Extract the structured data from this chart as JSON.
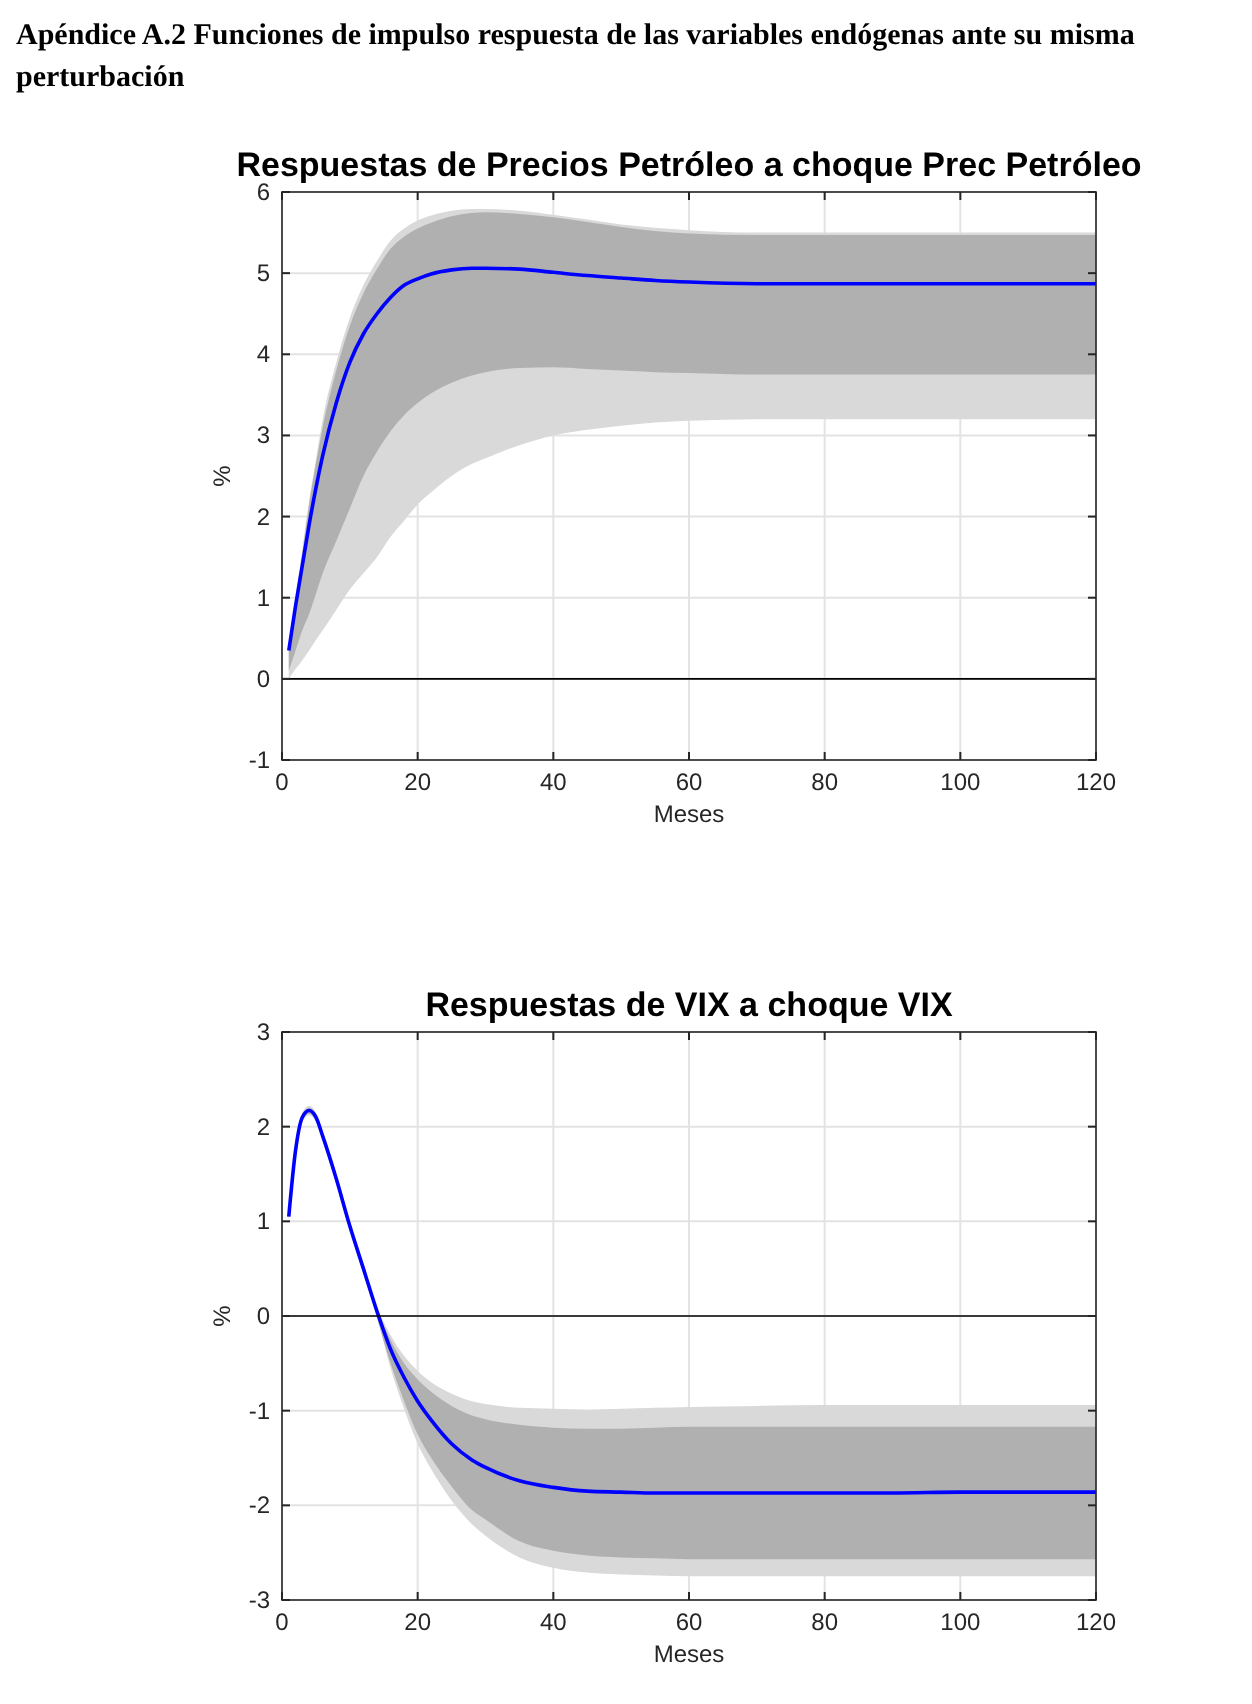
{
  "chart_data": [
    {
      "type": "line",
      "title": "Respuestas de Precios Petróleo a choque Prec Petróleo",
      "xlabel": "Meses",
      "ylabel": "%",
      "annotations": [
        "Apéndice A.2 Funciones de impulso respuesta de las variables endógenas ante su misma perturbación"
      ],
      "x": [
        1,
        2,
        3,
        4,
        5,
        6,
        8,
        10,
        12,
        14,
        16,
        18,
        20,
        22,
        25,
        28,
        30,
        35,
        40,
        45,
        50,
        55,
        60,
        70,
        80,
        90,
        100,
        110,
        120
      ],
      "series": [
        {
          "color": "#d9d9d9",
          "values": [
            null,
            null,
            null,
            null,
            null,
            null,
            null,
            null,
            null,
            null,
            null,
            null,
            null,
            null,
            null,
            null,
            null,
            null,
            null,
            null,
            null,
            null,
            null,
            null,
            null,
            null,
            null,
            null,
            null
          ],
          "lower": [
            0.0,
            0.12,
            0.23,
            0.35,
            0.48,
            0.6,
            0.85,
            1.1,
            1.3,
            1.5,
            1.75,
            1.95,
            2.15,
            2.3,
            2.5,
            2.65,
            2.72,
            2.88,
            3.0,
            3.07,
            3.12,
            3.16,
            3.18,
            3.2,
            3.2,
            3.2,
            3.2,
            3.2,
            3.2
          ],
          "upper": [
            0.4,
            1.0,
            1.6,
            2.2,
            2.7,
            3.2,
            3.9,
            4.45,
            4.85,
            5.15,
            5.4,
            5.55,
            5.65,
            5.71,
            5.77,
            5.79,
            5.79,
            5.77,
            5.72,
            5.66,
            5.6,
            5.56,
            5.53,
            5.5,
            5.5,
            5.5,
            5.5,
            5.5,
            5.5
          ]
        },
        {
          "color": "#b0b0b0",
          "values": [
            null,
            null,
            null,
            null,
            null,
            null,
            null,
            null,
            null,
            null,
            null,
            null,
            null,
            null,
            null,
            null,
            null,
            null,
            null,
            null,
            null,
            null,
            null,
            null,
            null,
            null,
            null,
            null,
            null
          ],
          "lower": [
            0.1,
            0.35,
            0.6,
            0.8,
            1.05,
            1.3,
            1.7,
            2.1,
            2.5,
            2.8,
            3.05,
            3.25,
            3.4,
            3.52,
            3.65,
            3.74,
            3.78,
            3.83,
            3.84,
            3.82,
            3.8,
            3.78,
            3.77,
            3.75,
            3.75,
            3.75,
            3.75,
            3.75,
            3.75
          ],
          "upper": [
            0.38,
            0.95,
            1.55,
            2.15,
            2.65,
            3.1,
            3.8,
            4.35,
            4.75,
            5.05,
            5.3,
            5.45,
            5.55,
            5.62,
            5.7,
            5.74,
            5.75,
            5.73,
            5.69,
            5.63,
            5.57,
            5.52,
            5.49,
            5.47,
            5.47,
            5.47,
            5.47,
            5.47,
            5.47
          ]
        },
        {
          "color": "#0000ff",
          "values": [
            0.35,
            0.9,
            1.4,
            1.9,
            2.35,
            2.75,
            3.4,
            3.9,
            4.25,
            4.5,
            4.7,
            4.85,
            4.93,
            4.99,
            5.04,
            5.06,
            5.06,
            5.05,
            5.01,
            4.97,
            4.94,
            4.91,
            4.89,
            4.87,
            4.87,
            4.87,
            4.87,
            4.87,
            4.87
          ]
        }
      ],
      "xlim": [
        0,
        120
      ],
      "xticks": [
        0,
        20,
        40,
        60,
        80,
        100,
        120
      ],
      "ylim": [
        -1,
        6
      ],
      "yticks": [
        -1,
        0,
        1,
        2,
        3,
        4,
        5,
        6
      ],
      "grid": true,
      "ref_lines": [
        {
          "axis": "y",
          "value": 0,
          "color": "#000000"
        }
      ]
    },
    {
      "type": "line",
      "title": "Respuestas de VIX a choque VIX",
      "xlabel": "Meses",
      "ylabel": "%",
      "x": [
        1,
        2,
        3,
        4,
        5,
        6,
        8,
        10,
        12,
        14,
        16,
        18,
        20,
        22,
        25,
        28,
        30,
        35,
        40,
        45,
        50,
        55,
        60,
        70,
        80,
        90,
        100,
        110,
        120
      ],
      "series": [
        {
          "color": "#d9d9d9",
          "values": [
            null,
            null,
            null,
            null,
            null,
            null,
            null,
            null,
            null,
            null,
            null,
            null,
            null,
            null,
            null,
            null,
            null,
            null,
            null,
            null,
            null,
            null,
            null,
            null,
            null,
            null,
            null,
            null,
            null
          ],
          "lower": [
            1.0,
            1.7,
            2.05,
            2.12,
            2.05,
            1.85,
            1.4,
            0.9,
            0.45,
            0.0,
            -0.55,
            -0.98,
            -1.35,
            -1.62,
            -1.95,
            -2.2,
            -2.32,
            -2.55,
            -2.66,
            -2.71,
            -2.73,
            -2.74,
            -2.75,
            -2.75,
            -2.75,
            -2.75,
            -2.75,
            -2.75,
            -2.75
          ],
          "upper": [
            1.08,
            1.8,
            2.15,
            2.22,
            2.15,
            1.95,
            1.5,
            1.0,
            0.55,
            0.1,
            -0.2,
            -0.42,
            -0.58,
            -0.7,
            -0.82,
            -0.9,
            -0.93,
            -0.97,
            -0.98,
            -0.99,
            -0.98,
            -0.97,
            -0.96,
            -0.95,
            -0.94,
            -0.94,
            -0.94,
            -0.94,
            -0.94
          ]
        },
        {
          "color": "#b0b0b0",
          "values": [
            null,
            null,
            null,
            null,
            null,
            null,
            null,
            null,
            null,
            null,
            null,
            null,
            null,
            null,
            null,
            null,
            null,
            null,
            null,
            null,
            null,
            null,
            null,
            null,
            null,
            null,
            null,
            null,
            null
          ],
          "lower": [
            1.02,
            1.72,
            2.07,
            2.14,
            2.07,
            1.87,
            1.42,
            0.92,
            0.47,
            -0.02,
            -0.5,
            -0.9,
            -1.25,
            -1.5,
            -1.8,
            -2.05,
            -2.15,
            -2.38,
            -2.48,
            -2.53,
            -2.55,
            -2.56,
            -2.57,
            -2.57,
            -2.57,
            -2.57,
            -2.57,
            -2.57,
            -2.57
          ],
          "upper": [
            1.07,
            1.78,
            2.13,
            2.2,
            2.13,
            1.93,
            1.48,
            0.98,
            0.53,
            0.08,
            -0.25,
            -0.5,
            -0.67,
            -0.8,
            -0.95,
            -1.05,
            -1.09,
            -1.15,
            -1.18,
            -1.19,
            -1.19,
            -1.18,
            -1.17,
            -1.17,
            -1.17,
            -1.17,
            -1.17,
            -1.17,
            -1.17
          ]
        },
        {
          "color": "#0000ff",
          "values": [
            1.05,
            1.75,
            2.1,
            2.17,
            2.1,
            1.9,
            1.45,
            0.95,
            0.5,
            0.05,
            -0.35,
            -0.65,
            -0.9,
            -1.1,
            -1.35,
            -1.52,
            -1.6,
            -1.74,
            -1.81,
            -1.85,
            -1.86,
            -1.87,
            -1.87,
            -1.87,
            -1.87,
            -1.87,
            -1.86,
            -1.86,
            -1.86
          ]
        }
      ],
      "xlim": [
        0,
        120
      ],
      "xticks": [
        0,
        20,
        40,
        60,
        80,
        100,
        120
      ],
      "ylim": [
        -3,
        3
      ],
      "yticks": [
        -3,
        -2,
        -1,
        0,
        1,
        2,
        3
      ],
      "grid": true,
      "ref_lines": [
        {
          "axis": "y",
          "value": 0,
          "color": "#000000"
        }
      ]
    }
  ]
}
